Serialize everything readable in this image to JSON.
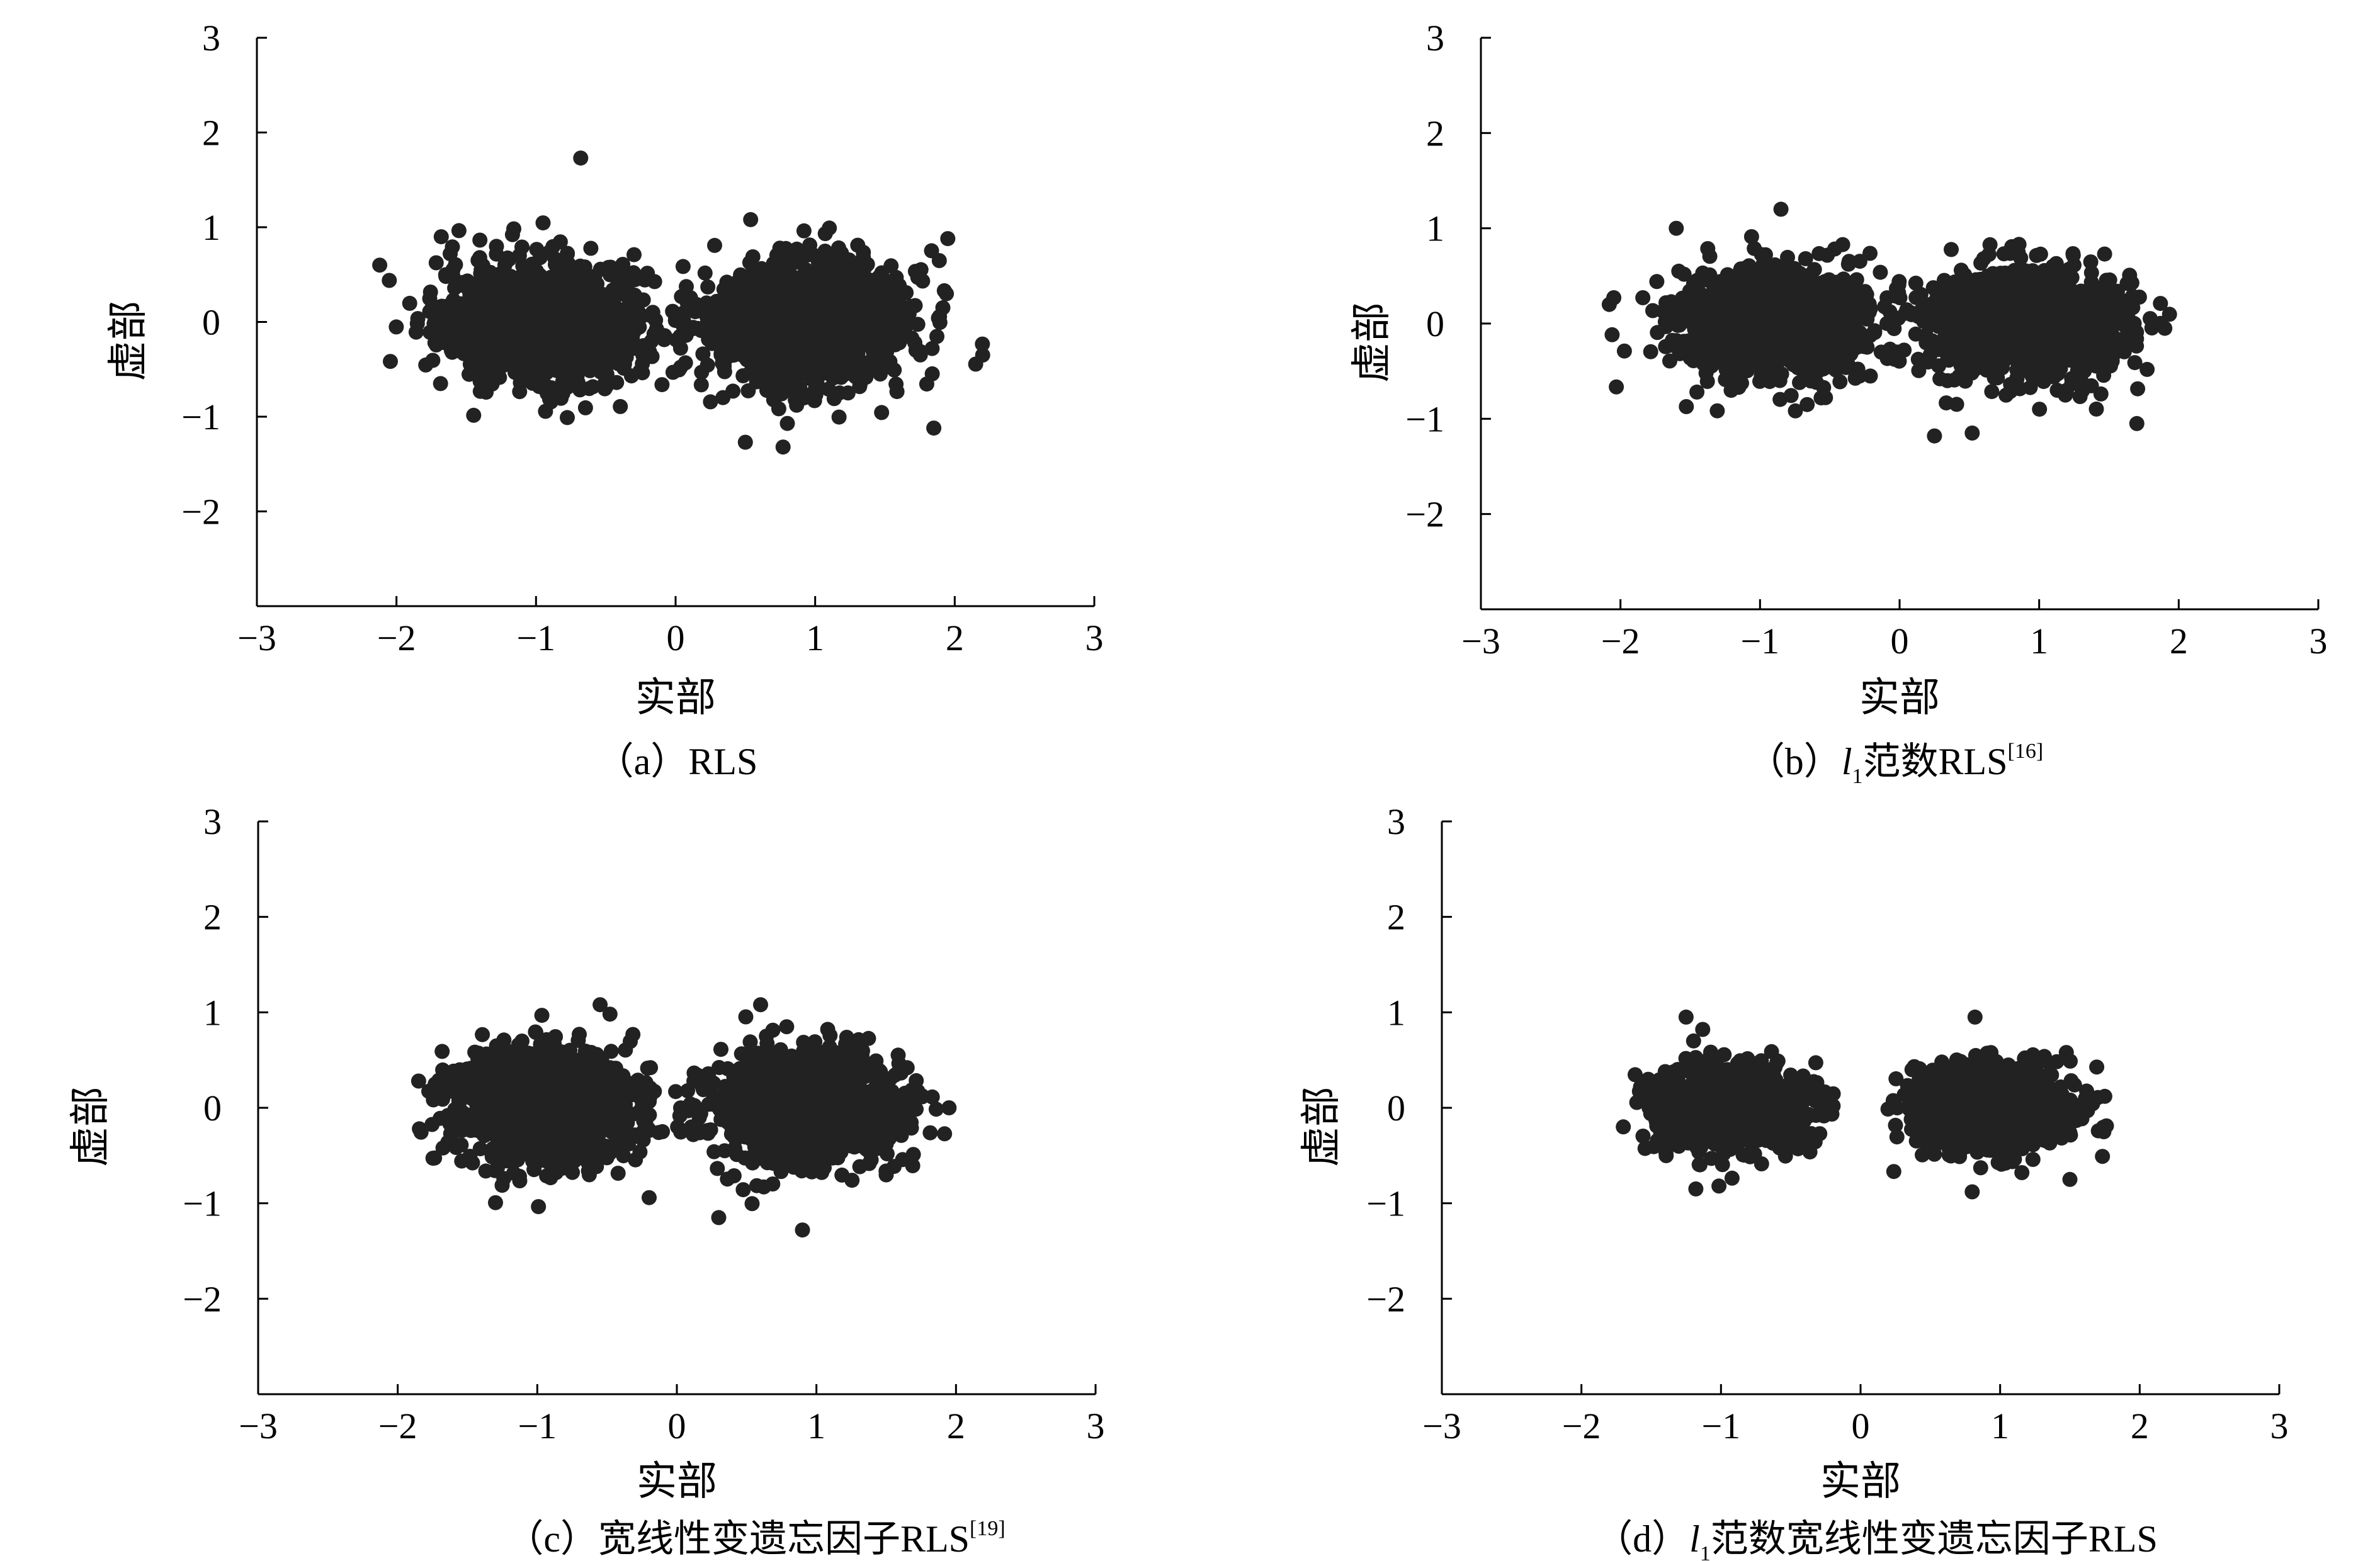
{
  "figure": {
    "colors": {
      "point": "#222222",
      "axis": "#000000",
      "background": "#ffffff"
    },
    "panels": [
      {
        "caption_prefix": "（a）",
        "caption_l1": "",
        "caption_l1_sub": "",
        "caption_main": "RLS",
        "caption_ref": ""
      },
      {
        "caption_prefix": "（b）",
        "caption_l1": "l",
        "caption_l1_sub": "1",
        "caption_main": "范数RLS",
        "caption_ref": "[16]"
      },
      {
        "caption_prefix": "（c）",
        "caption_l1": "",
        "caption_l1_sub": "",
        "caption_main": "宽线性变遗忘因子RLS",
        "caption_ref": "[19]"
      },
      {
        "caption_prefix": "（d）",
        "caption_l1": "l",
        "caption_l1_sub": "1",
        "caption_main": "范数宽线性变遗忘因子RLS",
        "caption_ref": ""
      }
    ]
  },
  "chart_data": [
    {
      "type": "scatter",
      "title": "（a）RLS",
      "xlabel": "实部",
      "ylabel": "虚部",
      "xlim": [
        -3,
        3
      ],
      "ylim": [
        -3,
        3
      ],
      "xticks": [
        "−3",
        "−2",
        "−1",
        "0",
        "1",
        "2",
        "3"
      ],
      "yticks": [
        "3",
        "2",
        "1",
        "0",
        "−1",
        "−2"
      ],
      "grid": false,
      "clusters": [
        {
          "center": [
            -0.95,
            0.0
          ],
          "spread": [
            0.38,
            0.33
          ],
          "range": [
            [
              -2.1,
              0.1
            ],
            [
              -1.05,
              1.3
            ]
          ]
        },
        {
          "center": [
            0.95,
            0.0
          ],
          "spread": [
            0.38,
            0.33
          ],
          "range": [
            [
              -0.05,
              2.2
            ],
            [
              -1.3,
              1.1
            ]
          ]
        }
      ],
      "outliers": [
        [
          -0.68,
          1.73
        ],
        [
          -2.12,
          0.6
        ],
        [
          0.5,
          -1.27
        ],
        [
          0.77,
          -1.32
        ],
        [
          1.85,
          -1.12
        ],
        [
          2.2,
          -0.35
        ],
        [
          1.95,
          0.88
        ]
      ]
    },
    {
      "type": "scatter",
      "title": "（b）l1范数RLS[16]",
      "xlabel": "实部",
      "ylabel": "虚部",
      "xlim": [
        -3,
        3
      ],
      "ylim": [
        -3,
        3
      ],
      "xticks": [
        "−3",
        "−2",
        "−1",
        "0",
        "1",
        "2",
        "3"
      ],
      "yticks": [
        "3",
        "2",
        "1",
        "0",
        "−1",
        "−2"
      ],
      "grid": false,
      "clusters": [
        {
          "center": [
            -0.9,
            0.0
          ],
          "spread": [
            0.35,
            0.29
          ],
          "range": [
            [
              -2.1,
              0.0
            ],
            [
              -1.05,
              1.2
            ]
          ]
        },
        {
          "center": [
            0.9,
            0.0
          ],
          "spread": [
            0.35,
            0.29
          ],
          "range": [
            [
              -0.15,
              1.95
            ],
            [
              -1.2,
              1.05
            ]
          ]
        }
      ],
      "outliers": [
        [
          -0.85,
          1.2
        ],
        [
          -2.08,
          0.2
        ],
        [
          0.25,
          -1.18
        ],
        [
          0.52,
          -1.15
        ],
        [
          1.7,
          -1.05
        ],
        [
          1.9,
          -0.05
        ],
        [
          -1.6,
          1.0
        ]
      ]
    },
    {
      "type": "scatter",
      "title": "（c）宽线性变遗忘因子RLS[19]",
      "xlabel": "实部",
      "ylabel": "虚部",
      "xlim": [
        -3,
        3
      ],
      "ylim": [
        -3,
        3
      ],
      "xticks": [
        "−3",
        "−2",
        "−1",
        "0",
        "1",
        "2",
        "3"
      ],
      "yticks": [
        "3",
        "2",
        "1",
        "0",
        "−1",
        "−2"
      ],
      "grid": false,
      "clusters": [
        {
          "center": [
            -0.95,
            0.0
          ],
          "spread": [
            0.34,
            0.3
          ],
          "range": [
            [
              -1.9,
              0.05
            ],
            [
              -1.05,
              1.1
            ]
          ]
        },
        {
          "center": [
            0.95,
            0.0
          ],
          "spread": [
            0.34,
            0.3
          ],
          "range": [
            [
              0.0,
              1.95
            ],
            [
              -1.3,
              1.1
            ]
          ]
        }
      ],
      "outliers": [
        [
          -0.55,
          1.08
        ],
        [
          0.6,
          1.08
        ],
        [
          0.9,
          -1.28
        ],
        [
          0.3,
          -1.15
        ],
        [
          1.95,
          0.0
        ],
        [
          -1.85,
          0.28
        ]
      ]
    },
    {
      "type": "scatter",
      "title": "（d）l1范数宽线性变遗忘因子RLS",
      "xlabel": "实部",
      "ylabel": "虚部",
      "xlim": [
        -3,
        3
      ],
      "ylim": [
        -3,
        3
      ],
      "xticks": [
        "−3",
        "−2",
        "−1",
        "0",
        "1",
        "2",
        "3"
      ],
      "yticks": [
        "3",
        "2",
        "1",
        "0",
        "−1",
        "−2"
      ],
      "grid": false,
      "clusters": [
        {
          "center": [
            -0.95,
            0.0
          ],
          "spread": [
            0.27,
            0.22
          ],
          "range": [
            [
              -1.7,
              -0.1
            ],
            [
              -0.85,
              0.95
            ]
          ]
        },
        {
          "center": [
            0.95,
            0.0
          ],
          "spread": [
            0.27,
            0.22
          ],
          "range": [
            [
              0.1,
              1.8
            ],
            [
              -0.9,
              0.95
            ]
          ]
        }
      ],
      "outliers": [
        [
          -1.25,
          0.95
        ],
        [
          0.82,
          0.95
        ],
        [
          -1.18,
          -0.85
        ],
        [
          0.8,
          -0.88
        ],
        [
          1.75,
          0.12
        ],
        [
          -1.7,
          -0.2
        ],
        [
          1.5,
          -0.75
        ]
      ]
    }
  ]
}
